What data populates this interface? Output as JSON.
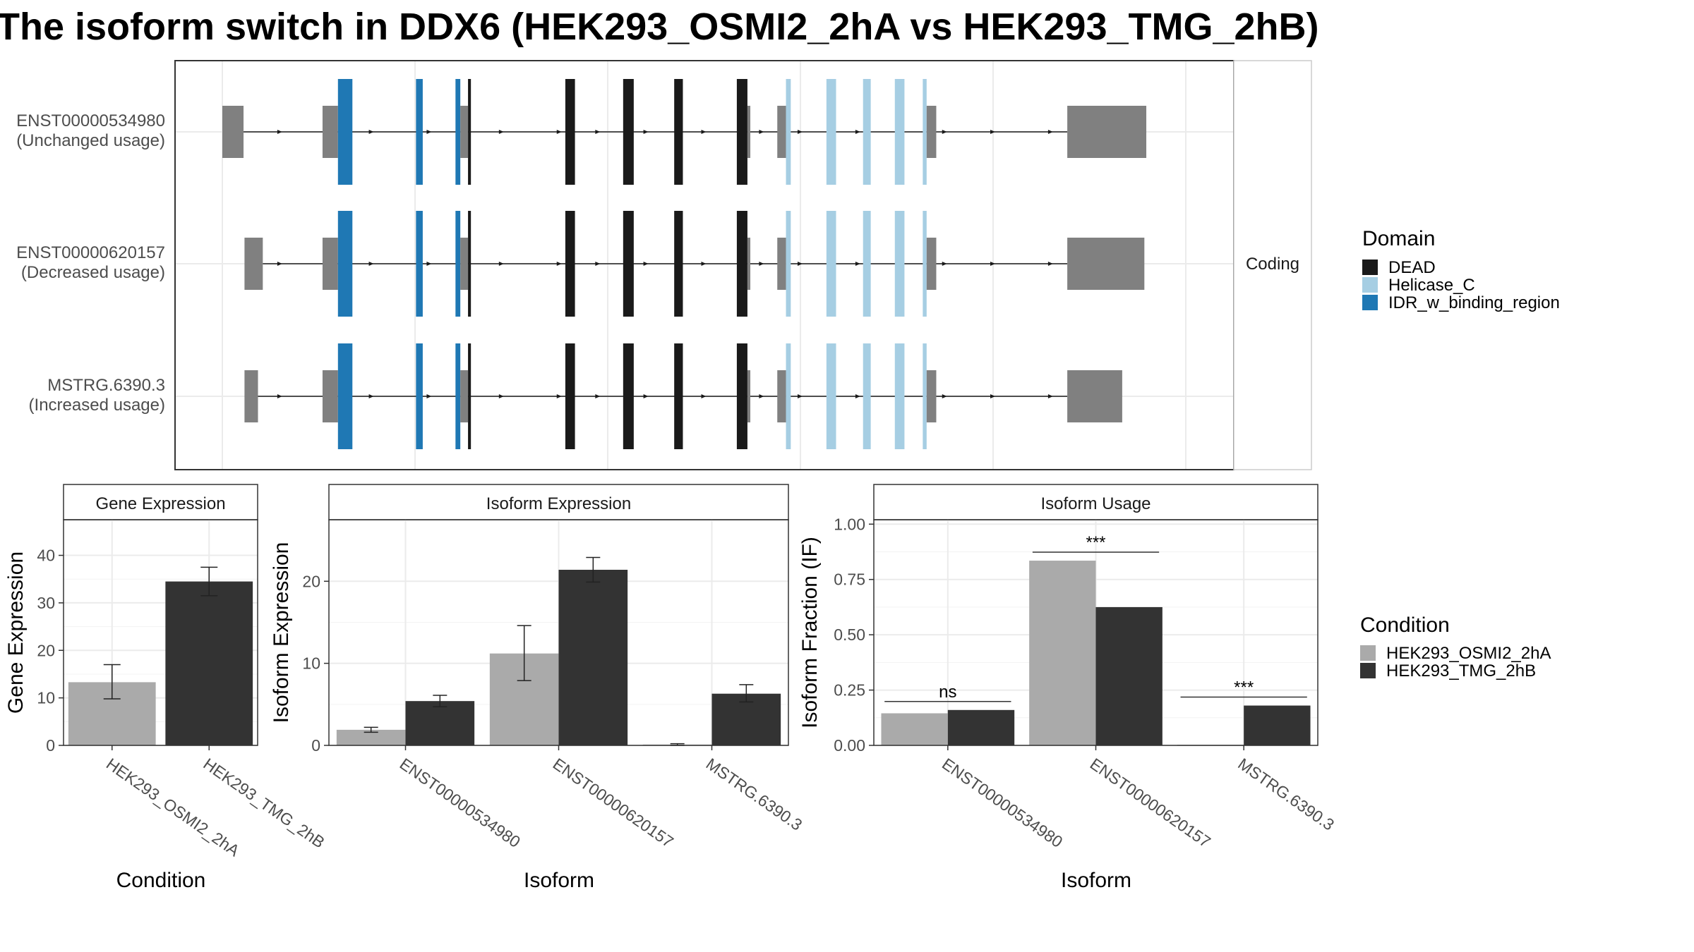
{
  "title": "The isoform switch in DDX6 (HEK293_OSMI2_2hA vs HEK293_TMG_2hB)",
  "colors": {
    "DEAD": "#1a1a1a",
    "Helicase_C": "#a6cee3",
    "IDR_w_binding_region": "#1f78b4",
    "utr": "#808080",
    "cond1": "#aaaaaa",
    "cond2": "#333333"
  },
  "transcripts": {
    "strip_label": "Coding",
    "rows": [
      {
        "id": "ENST00000534980",
        "usage": "(Unchanged usage)",
        "start_exon": [
          0,
          0.022
        ],
        "end_exon": [
          0.877,
          0.959
        ]
      },
      {
        "id": "ENST00000620157",
        "usage": "(Decreased usage)",
        "start_exon": [
          0.023,
          0.042
        ],
        "end_exon": [
          0.877,
          0.957
        ]
      },
      {
        "id": "MSTRG.6390.3",
        "usage": "(Increased usage)",
        "start_exon": [
          0.023,
          0.037
        ],
        "end_exon": [
          0.877,
          0.934
        ]
      }
    ],
    "shared_exons": [
      {
        "span": [
          0.104,
          0.12
        ],
        "domain": "utr",
        "utr_tall": false
      },
      {
        "span": [
          0.12,
          0.135
        ],
        "domain": "IDR_w_binding_region"
      },
      {
        "span": [
          0.201,
          0.208
        ],
        "domain": "IDR_w_binding_region"
      },
      {
        "span": [
          0.242,
          0.247
        ],
        "domain": "IDR_w_binding_region"
      },
      {
        "span": [
          0.247,
          0.255
        ],
        "domain": "utr"
      },
      {
        "span": [
          0.255,
          0.258
        ],
        "domain": "DEAD"
      },
      {
        "span": [
          0.356,
          0.366
        ],
        "domain": "DEAD"
      },
      {
        "span": [
          0.416,
          0.427
        ],
        "domain": "DEAD"
      },
      {
        "span": [
          0.469,
          0.478
        ],
        "domain": "DEAD"
      },
      {
        "span": [
          0.534,
          0.545
        ],
        "domain": "DEAD"
      },
      {
        "span": [
          0.545,
          0.548
        ],
        "domain": "utr"
      },
      {
        "span": [
          0.576,
          0.585
        ],
        "domain": "utr"
      },
      {
        "span": [
          0.585,
          0.59
        ],
        "domain": "Helicase_C"
      },
      {
        "span": [
          0.627,
          0.637
        ],
        "domain": "Helicase_C"
      },
      {
        "span": [
          0.665,
          0.673
        ],
        "domain": "Helicase_C"
      },
      {
        "span": [
          0.698,
          0.708
        ],
        "domain": "Helicase_C"
      },
      {
        "span": [
          0.727,
          0.731
        ],
        "domain": "Helicase_C"
      },
      {
        "span": [
          0.731,
          0.741
        ],
        "domain": "utr"
      }
    ],
    "arrow_positions": [
      0.06,
      0.155,
      0.215,
      0.29,
      0.35,
      0.39,
      0.44,
      0.5,
      0.56,
      0.6,
      0.66,
      0.75,
      0.8,
      0.86
    ]
  },
  "legend_domain": {
    "title": "Domain",
    "items": [
      "DEAD",
      "Helicase_C",
      "IDR_w_binding_region"
    ]
  },
  "legend_condition": {
    "title": "Condition",
    "items": [
      "HEK293_OSMI2_2hA",
      "HEK293_TMG_2hB"
    ]
  },
  "chart_data": [
    {
      "type": "bar",
      "title": "Gene Expression",
      "xlabel": "Condition",
      "ylabel": "Gene Expression",
      "categories": [
        "HEK293_OSMI2_2hA",
        "HEK293_TMG_2hB"
      ],
      "values": [
        13.3,
        34.5
      ],
      "errors": [
        [
          9.8,
          17.0
        ],
        [
          31.5,
          37.5
        ]
      ],
      "ylim": [
        0,
        47.5
      ],
      "yticks": [
        "0",
        "10",
        "20",
        "30",
        "40"
      ],
      "grid": true
    },
    {
      "type": "bar",
      "title": "Isoform Expression",
      "xlabel": "Isoform",
      "ylabel": "Isoform Expression",
      "categories": [
        "ENST00000534980",
        "ENST00000620157",
        "MSTRG.6390.3"
      ],
      "series": [
        {
          "name": "HEK293_OSMI2_2hA",
          "values": [
            1.9,
            11.2,
            0.1
          ],
          "errors": [
            [
              1.6,
              2.2
            ],
            [
              7.9,
              14.6
            ],
            [
              0.0,
              0.2
            ]
          ]
        },
        {
          "name": "HEK293_TMG_2hB",
          "values": [
            5.4,
            21.4,
            6.3
          ],
          "errors": [
            [
              4.7,
              6.1
            ],
            [
              19.9,
              22.9
            ],
            [
              5.3,
              7.4
            ]
          ]
        }
      ],
      "ylim": [
        0,
        27.5
      ],
      "yticks": [
        "0",
        "10",
        "20"
      ],
      "grid": true
    },
    {
      "type": "bar",
      "title": "Isoform Usage",
      "xlabel": "Isoform",
      "ylabel": "Isoform Fraction (IF)",
      "categories": [
        "ENST00000534980",
        "ENST00000620157",
        "MSTRG.6390.3"
      ],
      "series": [
        {
          "name": "HEK293_OSMI2_2hA",
          "values": [
            0.145,
            0.835,
            0.003
          ]
        },
        {
          "name": "HEK293_TMG_2hB",
          "values": [
            0.16,
            0.625,
            0.18
          ]
        }
      ],
      "significance": [
        "ns",
        "***",
        "***"
      ],
      "ylim": [
        0,
        1.02
      ],
      "yticks": [
        "0.00",
        "0.25",
        "0.50",
        "0.75",
        "1.00"
      ],
      "grid": true
    }
  ]
}
